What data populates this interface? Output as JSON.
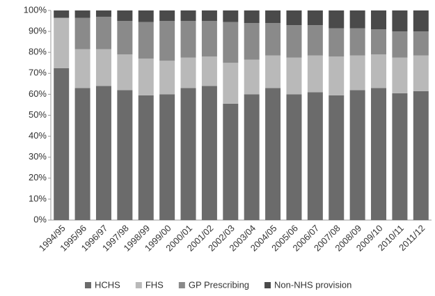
{
  "chart_data": {
    "type": "stacked_bar",
    "categories": [
      "1994/95",
      "1995/96",
      "1996/97",
      "1997/98",
      "1998/99",
      "1999/00",
      "2000/01",
      "2001/02",
      "2002/03",
      "2003/04",
      "2004/05",
      "2005/06",
      "2006/07",
      "2007/08",
      "2008/09",
      "2009/10",
      "2010/11",
      "2011/12"
    ],
    "series": [
      {
        "name": "HCHS",
        "color": "#6b6b6b",
        "values": [
          72.5,
          63,
          64,
          62,
          59.5,
          60,
          63,
          64,
          55.5,
          60,
          63,
          60,
          61,
          59.5,
          62,
          63,
          60.5,
          61.5
        ]
      },
      {
        "name": "FHS",
        "color": "#b9b9b9",
        "values": [
          24,
          18.5,
          17.5,
          17,
          17.5,
          16,
          14.5,
          14,
          19.5,
          16.5,
          15.5,
          17.5,
          17.5,
          18.5,
          16.5,
          16,
          17,
          17
        ]
      },
      {
        "name": "GP Prescribing",
        "color": "#8a8a8a",
        "values": [
          0,
          15,
          15.5,
          16,
          17.5,
          19,
          17.5,
          17,
          19.5,
          17.5,
          15.5,
          15.5,
          14.5,
          13.5,
          13,
          12,
          12.5,
          11.5
        ]
      },
      {
        "name": "Non-NHS provision",
        "color": "#4a4a4a",
        "values": [
          3.5,
          3.5,
          3,
          5,
          5.5,
          5,
          5,
          5,
          5.5,
          6,
          6,
          7,
          7,
          8.5,
          8.5,
          9,
          10,
          10
        ]
      }
    ],
    "ylim": [
      0,
      100
    ],
    "yticks": [
      {
        "value": 0,
        "label": "0%"
      },
      {
        "value": 10,
        "label": "10%"
      },
      {
        "value": 20,
        "label": "20%"
      },
      {
        "value": 30,
        "label": "30%"
      },
      {
        "value": 40,
        "label": "40%"
      },
      {
        "value": 50,
        "label": "50%"
      },
      {
        "value": 60,
        "label": "60%"
      },
      {
        "value": 70,
        "label": "70%"
      },
      {
        "value": 80,
        "label": "80%"
      },
      {
        "value": 90,
        "label": "90%"
      },
      {
        "value": 100,
        "label": "100%"
      }
    ],
    "legend": "bottom"
  }
}
